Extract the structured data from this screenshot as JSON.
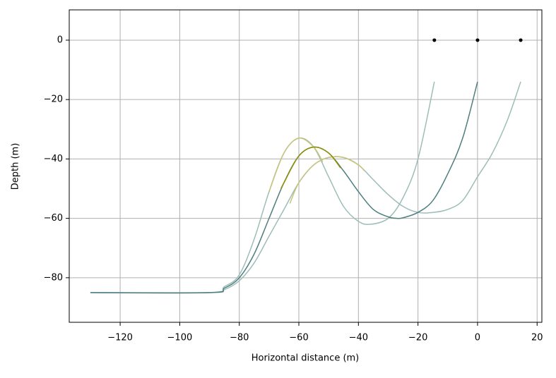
{
  "chart_data": {
    "type": "line",
    "xlabel": "Horizontal distance (m)",
    "ylabel": "Depth (m)",
    "xlim": [
      -137.1,
      21.6
    ],
    "ylim": [
      -95,
      10.2
    ],
    "xticks": [
      {
        "value": -120,
        "label": "−120"
      },
      {
        "value": -100,
        "label": "−100"
      },
      {
        "value": -80,
        "label": "−80"
      },
      {
        "value": -60,
        "label": "−60"
      },
      {
        "value": -40,
        "label": "−40"
      },
      {
        "value": -20,
        "label": "−20"
      },
      0,
      20
    ],
    "yticks": [
      0,
      {
        "value": -20,
        "label": "−20"
      },
      {
        "value": -40,
        "label": "−40"
      },
      {
        "value": -60,
        "label": "−60"
      },
      {
        "value": -80,
        "label": "−80"
      }
    ],
    "grid": true,
    "series": [
      {
        "color": "#9dbdb9",
        "x": [
          -130,
          -90,
          -85,
          -80,
          -75,
          -70,
          -65,
          -60,
          -55,
          -50,
          -45,
          -40,
          -36,
          -30,
          -25,
          -20,
          -14.5
        ],
        "values": [
          -85,
          -85,
          -83,
          -79,
          -67,
          -51,
          -38,
          -33,
          -36,
          -46,
          -56,
          -61,
          -62,
          -60,
          -53,
          -40,
          -14
        ]
      },
      {
        "color": "#9dbdb9",
        "x": [
          -130,
          -90,
          -85,
          -80,
          -75,
          -70,
          -65,
          -60,
          -55,
          -50,
          -45,
          -40,
          -35,
          -30,
          -25,
          -20,
          -15,
          -10,
          -5,
          0,
          5,
          10,
          14.5
        ],
        "values": [
          -85,
          -85,
          -84,
          -81,
          -75,
          -66,
          -57,
          -48,
          -42,
          -39.5,
          -39.5,
          -42,
          -47,
          -52,
          -56,
          -58,
          -58,
          -57,
          -54,
          -46,
          -38,
          -27,
          -14
        ]
      },
      {
        "color": "#4f7f7f",
        "x": [
          -130,
          -90,
          -85,
          -80,
          -75,
          -70,
          -65,
          -60,
          -55,
          -50,
          -45,
          -40,
          -35,
          -30,
          -27,
          -25,
          -20,
          -15,
          -10,
          -5,
          0
        ],
        "values": [
          -85,
          -85,
          -83.5,
          -80,
          -72,
          -60,
          -48,
          -39,
          -36,
          -38,
          -44,
          -51,
          -57,
          -59.5,
          -60,
          -59.8,
          -58,
          -54,
          -45,
          -33,
          -14
        ]
      },
      {
        "color": "#c8c47a",
        "x": [
          -70,
          -65,
          -60,
          -55,
          -52
        ],
        "values": [
          -51,
          -38,
          -33,
          -36,
          -41
        ]
      },
      {
        "color": "#c8c47a",
        "x": [
          -63,
          -60,
          -55,
          -50,
          -45,
          -40,
          -38
        ],
        "values": [
          -55,
          -48,
          -42,
          -39.5,
          -39.5,
          -42,
          -44
        ]
      },
      {
        "color": "#8f8f00",
        "x": [
          -66,
          -65,
          -60,
          -55,
          -50,
          -46
        ],
        "values": [
          -50,
          -48,
          -39,
          -36,
          -38,
          -43
        ]
      }
    ],
    "markers": {
      "color": "#000000",
      "x": [
        -14.5,
        0,
        14.5
      ],
      "values": [
        0,
        0,
        0
      ]
    }
  }
}
